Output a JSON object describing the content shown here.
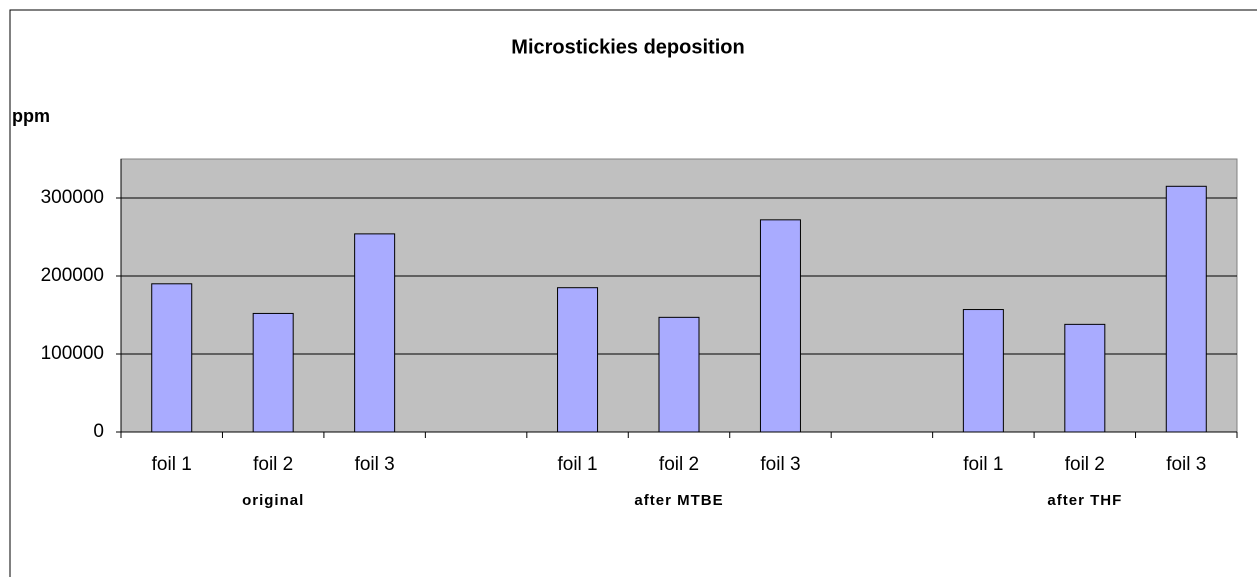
{
  "chart_data": {
    "type": "bar",
    "title": "Microstickies deposition",
    "y_label": "ppm",
    "categories": [
      "foil 1",
      "foil 2",
      "foil 3",
      null,
      "foil 1",
      "foil 2",
      "foil 3",
      null,
      "foil 1",
      "foil 2",
      "foil 3"
    ],
    "group_labels": [
      "original",
      "after MTBE",
      "after THF"
    ],
    "values": [
      190000,
      152000,
      254000,
      null,
      185000,
      147000,
      272000,
      null,
      157000,
      138000,
      315000
    ],
    "color": "#a9abff",
    "ylim": [
      0,
      350000
    ],
    "yticks": [
      0,
      100000,
      200000,
      300000
    ],
    "grid": true
  }
}
